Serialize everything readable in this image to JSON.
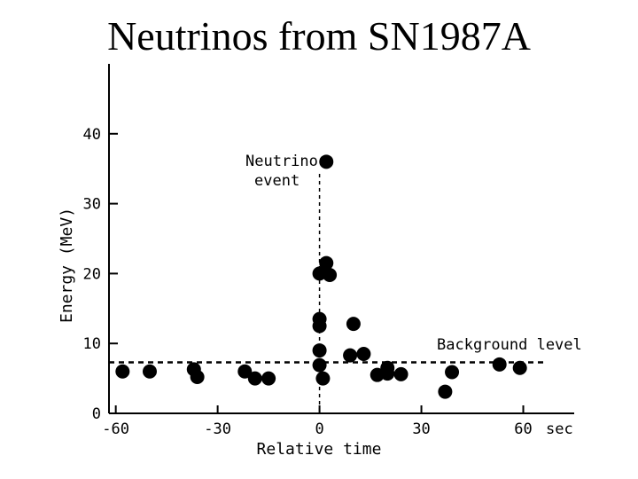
{
  "chart_data": {
    "type": "scatter",
    "title": "Neutrinos from SN1987A",
    "xlabel": "Relative time",
    "xunit": "sec",
    "ylabel": "Energy (MeV)",
    "xlim": [
      -62,
      75
    ],
    "ylim": [
      0,
      50
    ],
    "xticks": [
      -60,
      -30,
      0,
      30,
      60
    ],
    "xtick_labels": [
      "-60",
      "-30",
      "0",
      "30",
      "60"
    ],
    "yticks": [
      0,
      10,
      20,
      30,
      40
    ],
    "ytick_labels": [
      "0",
      "10",
      "20",
      "30",
      "40"
    ],
    "grid": false,
    "series": [
      {
        "points": [
          [
            -58,
            6
          ],
          [
            -50,
            6
          ],
          [
            -37,
            6.3
          ],
          [
            -36,
            5.2
          ],
          [
            -22,
            6
          ],
          [
            -19,
            5
          ],
          [
            -15,
            5
          ],
          [
            0,
            20
          ],
          [
            0,
            13.5
          ],
          [
            0,
            12.5
          ],
          [
            0,
            9
          ],
          [
            0,
            6.9
          ],
          [
            1,
            5
          ],
          [
            2,
            36
          ],
          [
            2,
            21.5
          ],
          [
            3,
            19.8
          ],
          [
            10,
            12.8
          ],
          [
            9,
            8.3
          ],
          [
            13,
            8.5
          ],
          [
            17,
            5.5
          ],
          [
            20,
            6.5
          ],
          [
            20,
            5.7
          ],
          [
            24,
            5.6
          ],
          [
            37,
            3.1
          ],
          [
            39,
            5.9
          ],
          [
            53,
            7
          ],
          [
            59,
            6.5
          ]
        ]
      }
    ],
    "annotations": [
      {
        "text_lines": [
          "Neutrino",
          "event"
        ],
        "target_x": 0
      },
      {
        "text": "Background level",
        "y": 7.3
      }
    ]
  }
}
